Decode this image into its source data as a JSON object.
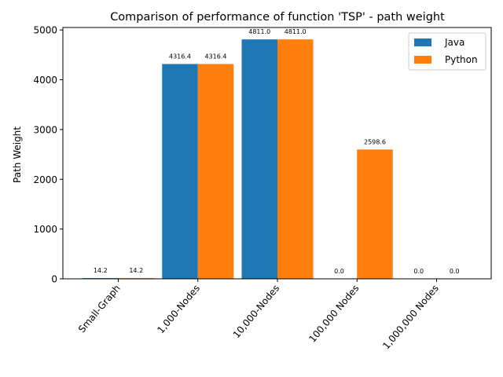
{
  "chart_data": {
    "type": "bar",
    "title": "Comparison of performance of function 'TSP' - path weight",
    "xlabel": "",
    "ylabel": "Path Weight",
    "categories": [
      "Small-Graph",
      "1,000-Nodes",
      "10,000-Nodes",
      "100,000 Nodes",
      "1,000,000 Nodes"
    ],
    "series": [
      {
        "name": "Java",
        "color": "#1f77b4",
        "values": [
          14.2,
          4316.4,
          4811.0,
          0.0,
          0.0
        ],
        "labels": [
          "14.2",
          "4316.4",
          "4811.0",
          "0.0",
          "0.0"
        ]
      },
      {
        "name": "Python",
        "color": "#ff7f0e",
        "values": [
          14.2,
          4316.4,
          4811.0,
          2598.6,
          0.0
        ],
        "labels": [
          "14.2",
          "4316.4",
          "4811.0",
          "2598.6",
          "0.0"
        ]
      }
    ],
    "ylim": [
      0,
      5050
    ],
    "yticks": [
      "0",
      "1000",
      "2000",
      "3000",
      "4000",
      "5000"
    ],
    "grid": false,
    "legend_position": "top-right"
  }
}
